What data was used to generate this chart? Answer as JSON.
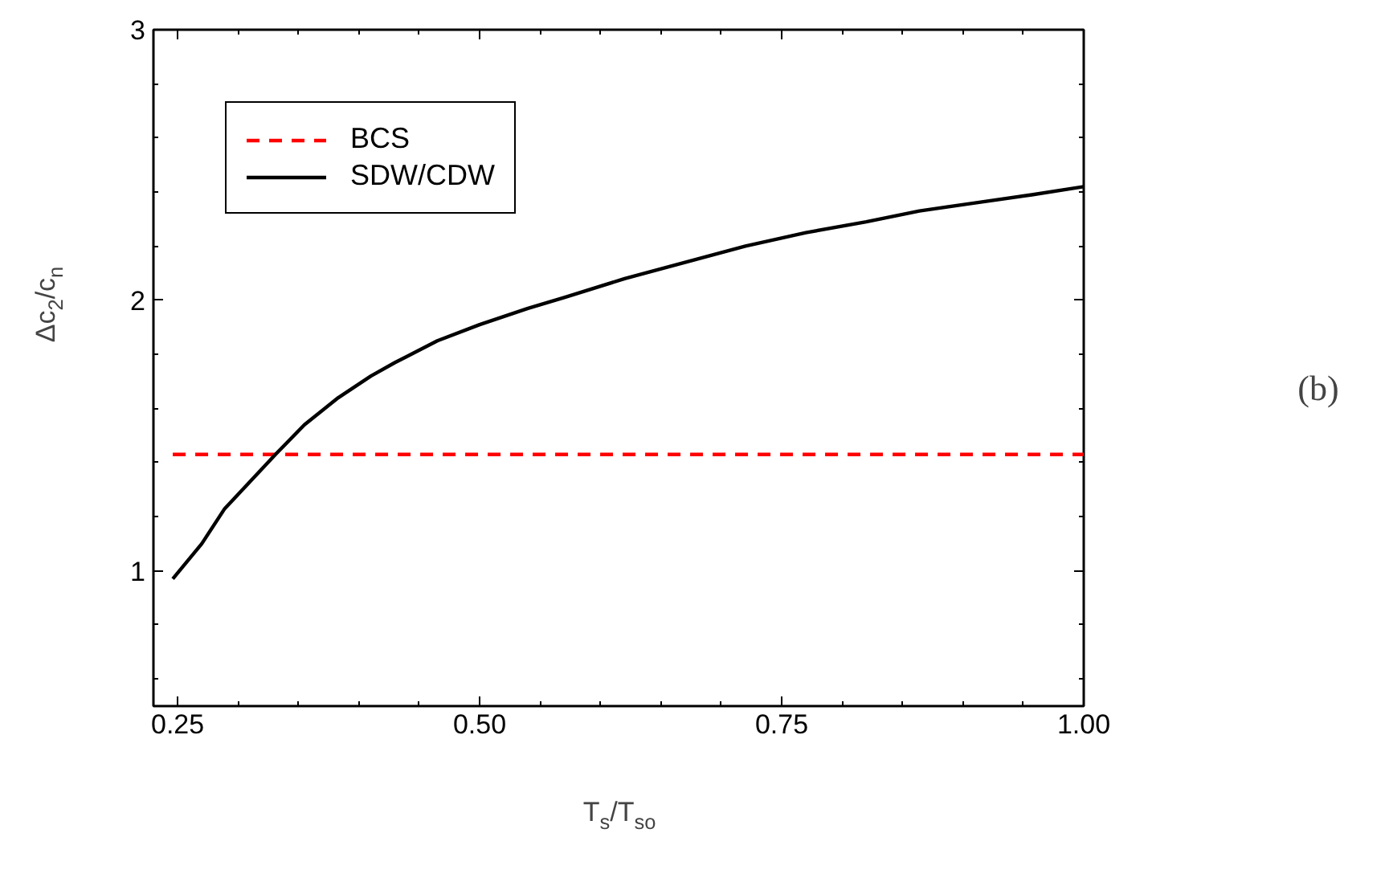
{
  "chart_data": {
    "type": "line",
    "xlabel": "T$_{s}$/T$_{so}$",
    "ylabel": "Δc$_{2}$/c$_{n}$",
    "annotations": [
      "(b)"
    ],
    "xlim": [
      0.23,
      1.0
    ],
    "xticks": [
      {
        "value": 0.25,
        "label": "0.25"
      },
      {
        "value": 0.5,
        "label": "0.50"
      },
      {
        "value": 0.75,
        "label": "0.75"
      },
      {
        "value": 1.0,
        "label": "1.00"
      }
    ],
    "ylim": [
      0.5,
      3
    ],
    "yticks": [
      1,
      2,
      3
    ],
    "grid": false,
    "legend": "top left",
    "series": [
      {
        "name": "BCS",
        "color": "#ff0000",
        "line_style": "dashed",
        "x": [
          0.246,
          1.0
        ],
        "values": [
          1.43,
          1.43
        ]
      },
      {
        "name": "SDW/CDW",
        "color": "#000000",
        "line_style": "solid",
        "x": [
          0.246,
          0.27,
          0.289,
          0.31,
          0.331,
          0.355,
          0.383,
          0.41,
          0.43,
          0.465,
          0.5,
          0.54,
          0.57,
          0.62,
          0.678,
          0.72,
          0.77,
          0.82,
          0.864,
          0.91,
          0.957,
          1.0
        ],
        "values": [
          0.97,
          1.1,
          1.23,
          1.33,
          1.43,
          1.54,
          1.64,
          1.72,
          1.77,
          1.85,
          1.91,
          1.97,
          2.01,
          2.08,
          2.15,
          2.2,
          2.25,
          2.29,
          2.33,
          2.36,
          2.39,
          2.42
        ]
      }
    ]
  }
}
